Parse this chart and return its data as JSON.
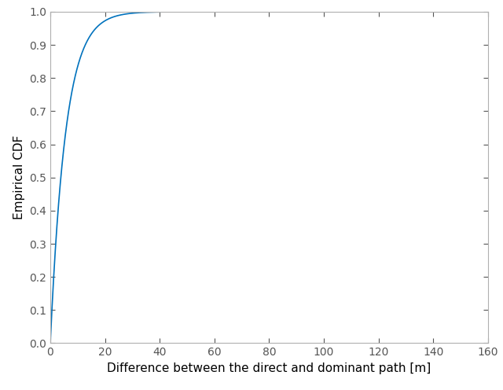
{
  "title": "",
  "xlabel": "Difference between the direct and dominant path [m]",
  "ylabel": "Empirical CDF",
  "xlim": [
    0,
    160
  ],
  "ylim": [
    0,
    1
  ],
  "xticks": [
    0,
    20,
    40,
    60,
    80,
    100,
    120,
    140,
    160
  ],
  "yticks": [
    0,
    0.1,
    0.2,
    0.3,
    0.4,
    0.5,
    0.6,
    0.7,
    0.8,
    0.9,
    1.0
  ],
  "line_color": "#0072BD",
  "line_width": 1.2,
  "background_color": "#ffffff",
  "lambda_param": 0.18,
  "spine_color": "#b0b0b0",
  "tick_color": "#555555",
  "label_fontsize": 11,
  "tick_fontsize": 10
}
